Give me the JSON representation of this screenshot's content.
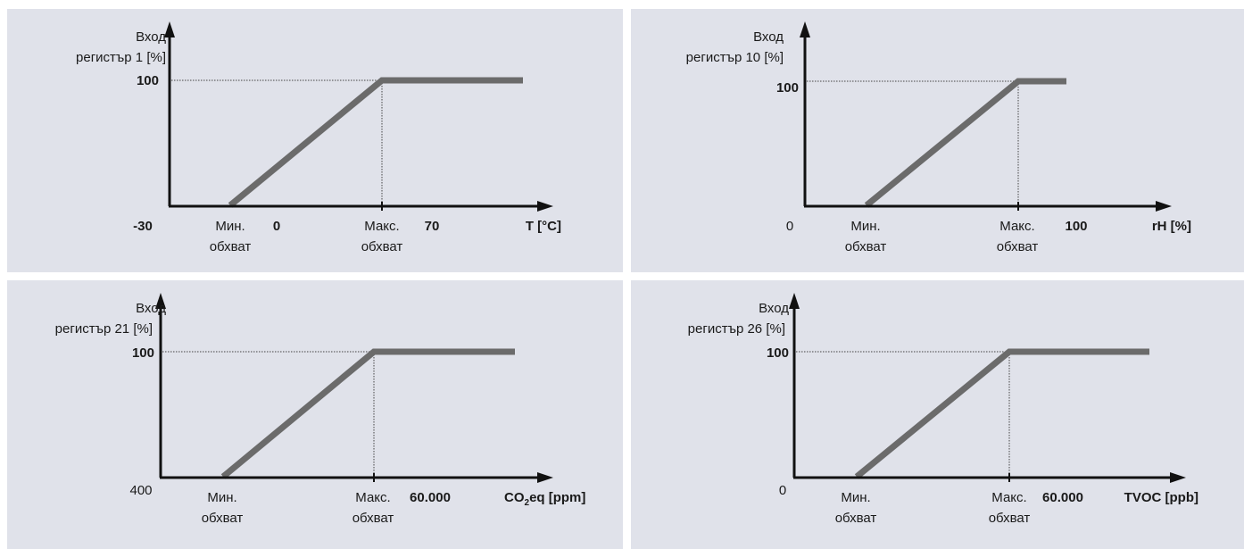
{
  "panels": [
    {
      "y_label_line1": "Вход",
      "y_label_line2": "регистър 1 [%]",
      "y_max": "100",
      "x_origin": "-30",
      "x_min_line1": "Мин.",
      "x_min_line2": "обхват",
      "x_zero": "0",
      "x_max_line1": "Макс.",
      "x_max_line2": "обхват",
      "x_end": "70",
      "x_unit": "T [°C]",
      "co2": false
    },
    {
      "y_label_line1": "Вход",
      "y_label_line2": "регистър 10 [%]",
      "y_max": "100",
      "x_origin": "0",
      "x_min_line1": "Мин.",
      "x_min_line2": "обхват",
      "x_max_line1": "Макс.",
      "x_max_line2": "обхват",
      "x_end": "100",
      "x_unit": "rH [%]",
      "co2": false
    },
    {
      "y_label_line1": "Вход",
      "y_label_line2": "регистър 21 [%]",
      "y_max": "100",
      "x_origin": "400",
      "x_min_line1": "Мин.",
      "x_min_line2": "обхват",
      "x_max_line1": "Макс.",
      "x_max_line2": "обхват",
      "x_end": "60.000",
      "x_unit_main": "CO",
      "x_unit_sub": "2",
      "x_unit_rest": "eq [ppm]",
      "co2": true
    },
    {
      "y_label_line1": "Вход",
      "y_label_line2": "регистър 26 [%]",
      "y_max": "100",
      "x_origin": "0",
      "x_min_line1": "Мин.",
      "x_min_line2": "обхват",
      "x_max_line1": "Макс.",
      "x_max_line2": "обхват",
      "x_end": "60.000",
      "x_unit": "TVOC [ppb]",
      "co2": false
    }
  ]
}
